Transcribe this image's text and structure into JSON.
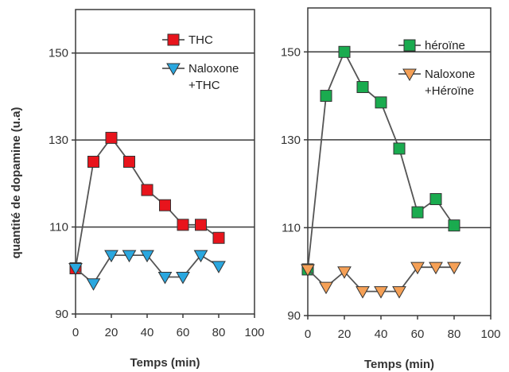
{
  "chart_data": [
    {
      "type": "line",
      "xlabel": "Temps (min)",
      "ylabel": "quantité de dopamine (u.a)",
      "xlim": [
        0,
        100
      ],
      "ylim": [
        90,
        160
      ],
      "xticks": [
        "0",
        "20",
        "40",
        "60",
        "80",
        "100"
      ],
      "yticks": [
        "90",
        "110",
        "130",
        "150"
      ],
      "grid": "horizontal",
      "legend_position": "top-right",
      "series": [
        {
          "name": "THC",
          "marker": "square",
          "color": "#e8141c",
          "x": [
            0,
            10,
            20,
            30,
            40,
            50,
            60,
            70,
            80
          ],
          "y": [
            100.5,
            125,
            130.5,
            125,
            118.5,
            115,
            110.5,
            110.5,
            107.5
          ]
        },
        {
          "name": "Naloxone +THC",
          "name_lines": [
            "Naloxone",
            "+THC"
          ],
          "marker": "triangle-down",
          "color": "#2aa7df",
          "x": [
            0,
            10,
            20,
            30,
            40,
            50,
            60,
            70,
            80
          ],
          "y": [
            100.5,
            97,
            103.5,
            103.5,
            103.5,
            98.5,
            98.5,
            103.5,
            101
          ]
        }
      ]
    },
    {
      "type": "line",
      "xlabel": "Temps (min)",
      "ylabel": "",
      "xlim": [
        0,
        100
      ],
      "ylim": [
        90,
        160
      ],
      "xticks": [
        "0",
        "20",
        "40",
        "60",
        "80",
        "100"
      ],
      "yticks": [
        "90",
        "110",
        "130",
        "150"
      ],
      "grid": "horizontal",
      "legend_position": "top-right",
      "series": [
        {
          "name": "héroïne",
          "marker": "square",
          "color": "#1aab4f",
          "x": [
            0,
            10,
            20,
            30,
            40,
            50,
            60,
            70,
            80
          ],
          "y": [
            100.5,
            140,
            150,
            142,
            138.5,
            128,
            113.5,
            116.5,
            110.5
          ]
        },
        {
          "name": "Naloxone +Héroïne",
          "name_lines": [
            "Naloxone",
            "+Héroïne"
          ],
          "marker": "triangle-down",
          "color": "#f5a056",
          "x": [
            0,
            10,
            20,
            30,
            40,
            50,
            60,
            70,
            80
          ],
          "y": [
            100.5,
            96.5,
            100,
            95.5,
            95.5,
            95.5,
            101,
            101,
            101
          ]
        }
      ]
    }
  ]
}
